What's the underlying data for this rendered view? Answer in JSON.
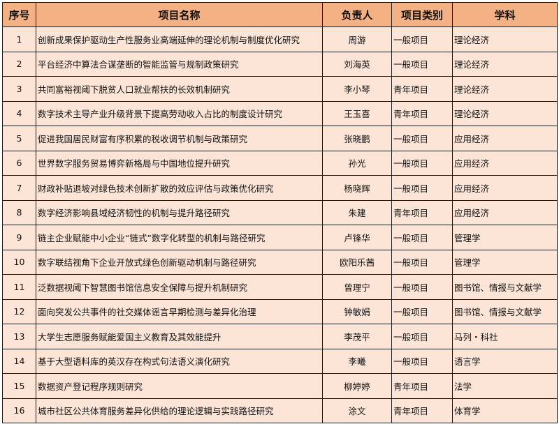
{
  "colors": {
    "header_bg": "#F4B183",
    "row_bg": "#FCE4D6"
  },
  "headers": [
    "序号",
    "项目名称",
    "负责人",
    "项目类别",
    "学科"
  ],
  "rows": [
    {
      "no": "1",
      "name": "创新成果保护驱动生产性服务业高端延伸的理论机制与制度优化研究",
      "leader": "周游",
      "type": "一般项目",
      "subject": "理论经济"
    },
    {
      "no": "2",
      "name": "平台经济中算法合谋垄断的智能监管与规制政策研究",
      "leader": "刘海英",
      "type": "一般项目",
      "subject": "理论经济"
    },
    {
      "no": "3",
      "name": "共同富裕视阈下脱贫人口就业帮扶的长效机制研究",
      "leader": "李小琴",
      "type": "青年项目",
      "subject": "理论经济"
    },
    {
      "no": "4",
      "name": "数字技术主导产业升级背景下提高劳动收入占比的制度设计研究",
      "leader": "王玉喜",
      "type": "青年项目",
      "subject": "理论经济"
    },
    {
      "no": "5",
      "name": "促进我国居民财富有序积累的税收调节机制与政策研究",
      "leader": "张晓鹏",
      "type": "一般项目",
      "subject": "应用经济"
    },
    {
      "no": "6",
      "name": "世界数字服务贸易博弈新格局与中国地位提升研究",
      "leader": "孙光",
      "type": "一般项目",
      "subject": "应用经济"
    },
    {
      "no": "7",
      "name": "财政补贴退坡对绿色技术创新扩散的效应评估与政策优化研究",
      "leader": "杨晓辉",
      "type": "一般项目",
      "subject": "应用经济"
    },
    {
      "no": "8",
      "name": "数字经济影响县域经济韧性的机制与提升路径研究",
      "leader": "朱建",
      "type": "青年项目",
      "subject": "应用经济"
    },
    {
      "no": "9",
      "name": "链主企业赋能中小企业“链式”数字化转型的机制与路径研究",
      "leader": "卢锋华",
      "type": "一般项目",
      "subject": "管理学"
    },
    {
      "no": "10",
      "name": "数字联结视角下企业开放式绿色创新驱动机制与路径研究",
      "leader": "欧阳乐茜",
      "type": "一般项目",
      "subject": "管理学"
    },
    {
      "no": "11",
      "name": "泛数据视阈下智慧图书馆信息安全保障与提升机制研究",
      "leader": "曾理宁",
      "type": "一般项目",
      "subject": "图书馆、情报与文献学"
    },
    {
      "no": "12",
      "name": "面向突发公共事件的社交媒体谣言早期检测与差异化治理",
      "leader": "钟敏娟",
      "type": "一般项目",
      "subject": "图书馆、情报与文献学"
    },
    {
      "no": "13",
      "name": "大学生志愿服务赋能爱国主义教育及其效能提升",
      "leader": "李茂平",
      "type": "一般项目",
      "subject": "马列・科社"
    },
    {
      "no": "14",
      "name": "基于大型语料库的英汉存在构式句法语义演化研究",
      "leader": "李曦",
      "type": "一般项目",
      "subject": "语言学"
    },
    {
      "no": "15",
      "name": "数据资产登记程序规则研究",
      "leader": "柳婷婷",
      "type": "青年项目",
      "subject": "法学"
    },
    {
      "no": "16",
      "name": "城市社区公共体育服务差异化供给的理论逻辑与实践路径研究",
      "leader": "涂文",
      "type": "青年项目",
      "subject": "体育学"
    }
  ]
}
